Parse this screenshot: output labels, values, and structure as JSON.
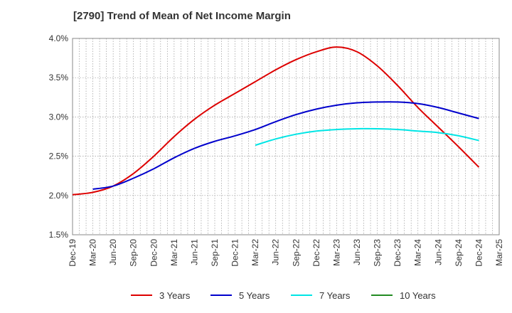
{
  "chart_data": {
    "type": "line",
    "title": "[2790]  Trend of Mean of Net Income Margin",
    "xlabel": "",
    "ylabel": "",
    "x": [
      "Dec-19",
      "Mar-20",
      "Jun-20",
      "Sep-20",
      "Dec-20",
      "Mar-21",
      "Jun-21",
      "Sep-21",
      "Dec-21",
      "Mar-22",
      "Jun-22",
      "Sep-22",
      "Dec-22",
      "Mar-23",
      "Jun-23",
      "Sep-23",
      "Dec-23",
      "Mar-24",
      "Jun-24",
      "Sep-24",
      "Dec-24",
      "Mar-25"
    ],
    "y_ticks": [
      "1.5%",
      "2.0%",
      "2.5%",
      "3.0%",
      "3.5%",
      "4.0%"
    ],
    "ylim": [
      1.5,
      4.0
    ],
    "grid": true,
    "legend_position": "bottom",
    "series": [
      {
        "name": "3 Years",
        "color": "#dd0000",
        "values": [
          2.01,
          2.04,
          2.12,
          2.28,
          2.5,
          2.75,
          2.97,
          3.15,
          3.3,
          3.45,
          3.6,
          3.73,
          3.83,
          3.89,
          3.83,
          3.65,
          3.4,
          3.12,
          2.87,
          2.62,
          2.36,
          null
        ]
      },
      {
        "name": "5 Years",
        "color": "#0000cc",
        "values": [
          null,
          2.08,
          2.12,
          2.22,
          2.34,
          2.48,
          2.6,
          2.69,
          2.76,
          2.84,
          2.94,
          3.03,
          3.1,
          3.15,
          3.18,
          3.19,
          3.19,
          3.17,
          3.12,
          3.05,
          2.98,
          null
        ]
      },
      {
        "name": "7 Years",
        "color": "#00e5e5",
        "values": [
          null,
          null,
          null,
          null,
          null,
          null,
          null,
          null,
          null,
          2.64,
          2.72,
          2.78,
          2.82,
          2.84,
          2.85,
          2.85,
          2.84,
          2.82,
          2.8,
          2.76,
          2.7,
          null
        ]
      },
      {
        "name": "10 Years",
        "color": "#228b22",
        "values": [
          null,
          null,
          null,
          null,
          null,
          null,
          null,
          null,
          null,
          null,
          null,
          null,
          null,
          null,
          null,
          null,
          null,
          null,
          null,
          null,
          null,
          null
        ]
      }
    ]
  }
}
